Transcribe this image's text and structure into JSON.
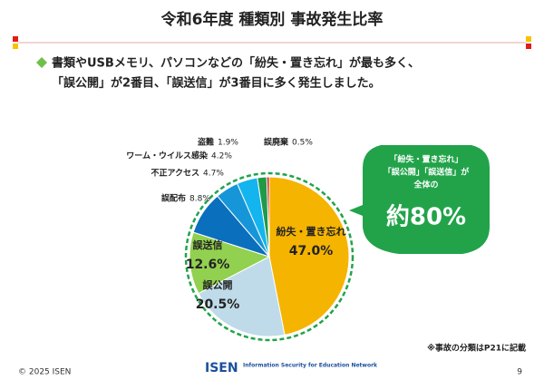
{
  "chart_data": {
    "type": "pie",
    "title": "令和6年度 種類別 事故発生比率",
    "categories": [
      "紛失・置き忘れ",
      "誤公開",
      "誤送信",
      "誤配布",
      "不正アクセス",
      "ワーム・ウイルス感染",
      "盗難",
      "誤廃棄"
    ],
    "values": [
      47.0,
      20.5,
      12.6,
      8.8,
      4.7,
      4.2,
      1.9,
      0.5
    ],
    "value_labels": [
      "47.0%",
      "20.5%",
      "12.6%",
      "8.8%",
      "4.7%",
      "4.2%",
      "1.9%",
      "0.5%"
    ],
    "colors": [
      "#f5b400",
      "#bfdbe9",
      "#92d050",
      "#0a6fbd",
      "#1696d8",
      "#14b4ee",
      "#1e9a48",
      "#e01010"
    ],
    "callout": {
      "lines": [
        "「紛失・置き忘れ」",
        "「誤公開」「誤送信」が",
        "全体の"
      ],
      "emphasis": "約80%"
    }
  },
  "summary": [
    "書類やUSBメモリ、パソコンなどの「紛失・置き忘れ」が最も多く、",
    "「誤公開」が2番目、「誤送信」が3番目に多く発生しました。"
  ],
  "note": "※事故の分類はP21に記載",
  "footer": {
    "copyright": "© 2025 ISEN",
    "logo": "ISEN",
    "logo_tagline": "Information Security for Education Network",
    "page": "9"
  }
}
